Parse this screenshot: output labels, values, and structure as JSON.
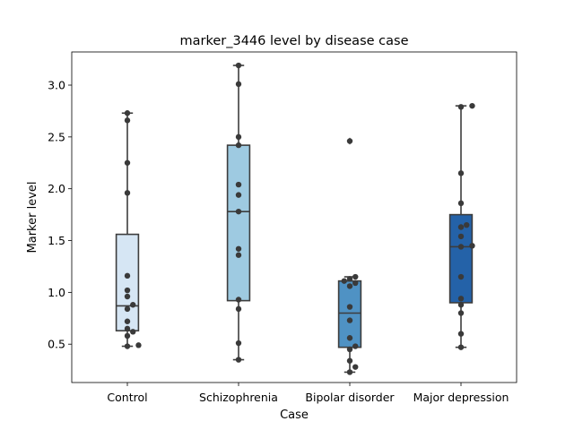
{
  "chart_data": {
    "type": "box",
    "title": "marker_3446 level by disease case",
    "xlabel": "Case",
    "ylabel": "Marker level",
    "ylim": [
      0.13,
      3.32
    ],
    "yticks": [
      0.5,
      1.0,
      1.5,
      2.0,
      2.5,
      3.0
    ],
    "ytick_labels": [
      "0.5",
      "1.0",
      "1.5",
      "2.0",
      "2.5",
      "3.0"
    ],
    "categories": [
      "Control",
      "Schizophrenia",
      "Bipolar disorder",
      "Major depression"
    ],
    "box_colors": [
      "#d6e6f4",
      "#9ecae1",
      "#4f92c4",
      "#2462a8"
    ],
    "boxes": [
      {
        "q1": 0.63,
        "median": 0.87,
        "q3": 1.56,
        "whisker_low": 0.48,
        "whisker_high": 2.73,
        "outliers": []
      },
      {
        "q1": 0.92,
        "median": 1.78,
        "q3": 2.42,
        "whisker_low": 0.35,
        "whisker_high": 3.19,
        "outliers": []
      },
      {
        "q1": 0.47,
        "median": 0.8,
        "q3": 1.11,
        "whisker_low": 0.23,
        "whisker_high": 1.15,
        "outliers": [
          2.46
        ]
      },
      {
        "q1": 0.9,
        "median": 1.44,
        "q3": 1.75,
        "whisker_low": 0.47,
        "whisker_high": 2.8,
        "outliers": []
      }
    ],
    "points": [
      [
        0.48,
        0.49,
        0.58,
        0.62,
        0.65,
        0.72,
        0.84,
        0.88,
        0.96,
        1.02,
        1.16,
        1.96,
        2.25,
        2.66,
        2.73
      ],
      [
        0.35,
        0.51,
        0.84,
        0.93,
        1.36,
        1.42,
        1.78,
        1.94,
        2.04,
        2.42,
        2.5,
        3.01,
        3.19
      ],
      [
        0.23,
        0.28,
        0.34,
        0.45,
        0.48,
        0.56,
        0.73,
        0.86,
        1.06,
        1.09,
        1.11,
        1.13,
        1.15,
        2.46
      ],
      [
        0.47,
        0.6,
        0.8,
        0.88,
        0.94,
        1.15,
        1.44,
        1.45,
        1.54,
        1.63,
        1.65,
        1.86,
        2.15,
        2.79,
        2.8
      ]
    ],
    "point_color": "#3a3a3a",
    "grid": false,
    "legend": "none"
  }
}
